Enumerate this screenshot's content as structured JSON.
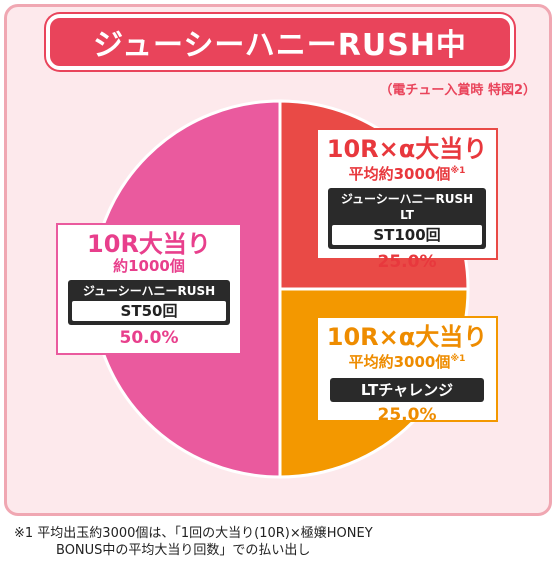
{
  "title": "ジューシーハニーRUSH中",
  "condition": "（電チュー入賞時 特図2）",
  "chart_data": {
    "type": "pie",
    "slices": [
      {
        "title": "10R×α大当り",
        "sub": "平均約3000個",
        "note_mark": "※1",
        "mode": "ジューシーハニーRUSH LT",
        "st": "ST100回",
        "value": 25.0,
        "percent": "25.0%",
        "color": "#e94a46"
      },
      {
        "title": "10R×α大当り",
        "sub": "平均約3000個",
        "note_mark": "※1",
        "mode": "LTチャレンジ",
        "value": 25.0,
        "percent": "25.0%",
        "color": "#f39800"
      },
      {
        "title": "10R大当り",
        "sub": "約1000個",
        "mode": "ジューシーハニーRUSH",
        "st": "ST50回",
        "value": 50.0,
        "percent": "50.0%",
        "color": "#ea5a9e"
      }
    ]
  },
  "colors": {
    "accent": "#e9445b",
    "red_text": "#e8383d",
    "orange_text": "#ee8c00",
    "pink_text": "#e83f8c"
  },
  "footnote": {
    "line1": "※1  平均出玉約3000個は、「1回の大当り(10R)×極嬢HONEY",
    "line2": "BONUS中の平均大当り回数」での払い出し"
  }
}
